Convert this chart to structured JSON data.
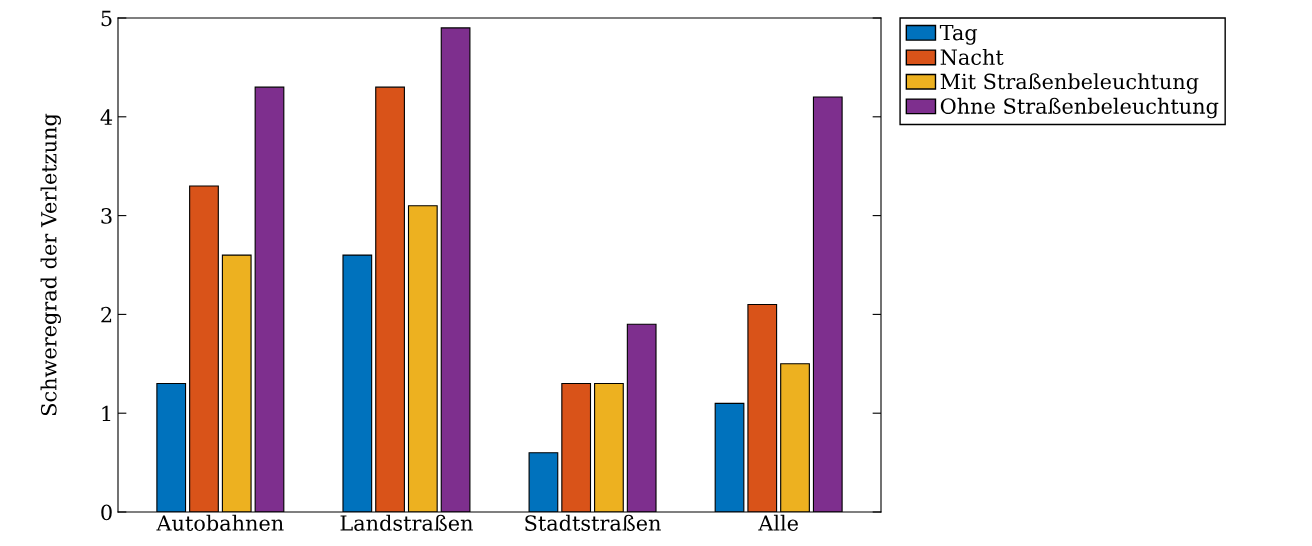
{
  "chart_data": {
    "type": "bar",
    "ylabel": "Schweregrad der Verletzung",
    "categories": [
      "Autobahnen",
      "Landstraßen",
      "Stadtstraßen",
      "Alle"
    ],
    "series": [
      {
        "name": "Tag",
        "color": "#0072bd",
        "values": [
          1.3,
          2.6,
          0.6,
          1.1
        ]
      },
      {
        "name": "Nacht",
        "color": "#d95319",
        "values": [
          3.3,
          4.3,
          1.3,
          2.1
        ]
      },
      {
        "name": "Mit Straßenbeleuchtung",
        "color": "#edb120",
        "values": [
          2.6,
          3.1,
          1.3,
          1.5
        ]
      },
      {
        "name": "Ohne Straßenbeleuchtung",
        "color": "#7e2f8e",
        "values": [
          4.3,
          4.9,
          1.9,
          4.2
        ]
      }
    ],
    "ylim": [
      0,
      5
    ],
    "yticks": [
      0,
      1,
      2,
      3,
      4,
      5
    ],
    "grid": false,
    "legend": "right"
  }
}
